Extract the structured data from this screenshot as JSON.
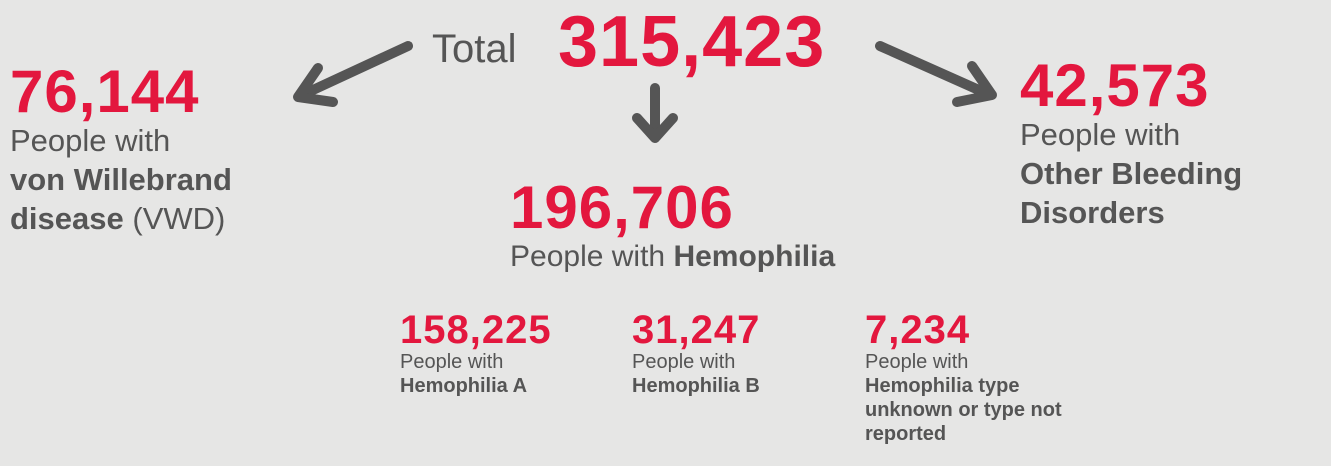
{
  "total": {
    "label": "Total",
    "value": "315,423"
  },
  "vwd": {
    "value": "76,144",
    "prefix": "People with",
    "name": "von Willebrand disease",
    "suffix": "(VWD)"
  },
  "hemophilia": {
    "value": "196,706",
    "prefix": "People with",
    "name": "Hemophilia",
    "types": [
      {
        "value": "158,225",
        "prefix": "People with",
        "name": "Hemophilia A"
      },
      {
        "value": "31,247",
        "prefix": "People with",
        "name": "Hemophilia B"
      },
      {
        "value": "7,234",
        "prefix": "People with",
        "name": "Hemophilia type unknown or type not reported"
      }
    ]
  },
  "other": {
    "value": "42,573",
    "prefix": "People with",
    "name": "Other Bleeding Disorders"
  }
}
